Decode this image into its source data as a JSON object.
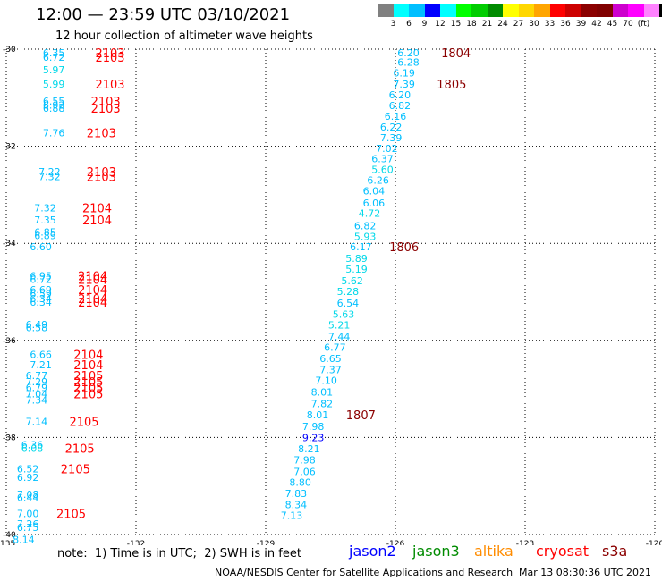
{
  "header": {
    "title": "12:00 — 23:59 UTC 03/10/2021",
    "subtitle": "12 hour collection of altimeter wave heights"
  },
  "colorbar": {
    "colors": [
      "#808080",
      "#00ffff",
      "#00bfff",
      "#0000ff",
      "#00ffff",
      "#00ff00",
      "#00cd00",
      "#008b00",
      "#ffff00",
      "#ffd700",
      "#ffa500",
      "#ff0000",
      "#cd0000",
      "#8b0000",
      "#800000",
      "#cd00cd",
      "#ff00ff",
      "#ff82ff",
      "#000000"
    ],
    "labels": [
      "3",
      "6",
      "9",
      "12",
      "15",
      "18",
      "21",
      "24",
      "27",
      "30",
      "33",
      "36",
      "39",
      "42",
      "45",
      "70",
      "(ft)"
    ]
  },
  "footer": {
    "note": "note:  1) Time is in UTC;  2) SWH is in feet",
    "credit": "NOAA/NESDIS Center for Satellite Applications and Research",
    "timestamp": "Mar 13 08:30:36 UTC 2021",
    "satellites": [
      {
        "name": "jason2",
        "color": "#0000ff"
      },
      {
        "name": "jason3",
        "color": "#008b00"
      },
      {
        "name": "altika",
        "color": "#ff8c00"
      },
      {
        "name": "cryosat",
        "color": "#ff0000"
      },
      {
        "name": "s3a",
        "color": "#8b0000"
      }
    ]
  },
  "chart_data": {
    "type": "scatter",
    "title": "12 hour collection of altimeter wave heights",
    "xlim": [
      -135,
      -120
    ],
    "ylim": [
      -40,
      -30
    ],
    "x_ticks": [
      -135,
      -132,
      -129,
      -126,
      -123,
      -120
    ],
    "y_ticks": [
      -30,
      -32,
      -34,
      -36,
      -38,
      -40
    ],
    "grid": true,
    "colors": {
      "light": "#00bfff",
      "cyan": "#00d8e8",
      "dark": "#0000ff",
      "red": "#ff0000",
      "darkred": "#8b0000"
    },
    "track_a": {
      "label_color": "#ff0000",
      "points": [
        {
          "lon": -133.9,
          "lat": -30.07,
          "swh": "6.35",
          "c": "light"
        },
        {
          "lon": -133.9,
          "lat": -30.17,
          "swh": "6.72",
          "c": "light"
        },
        {
          "lon": -133.9,
          "lat": -30.42,
          "swh": "5.97",
          "c": "cyan"
        },
        {
          "lon": -133.9,
          "lat": -30.72,
          "swh": "5.99",
          "c": "cyan"
        },
        {
          "lon": -133.9,
          "lat": -31.07,
          "swh": "6.55",
          "c": "light"
        },
        {
          "lon": -133.9,
          "lat": -31.15,
          "swh": "6.92",
          "c": "light"
        },
        {
          "lon": -133.9,
          "lat": -31.22,
          "swh": "6.88",
          "c": "light"
        },
        {
          "lon": -133.9,
          "lat": -31.72,
          "swh": "7.76",
          "c": "light"
        },
        {
          "lon": -134.0,
          "lat": -32.52,
          "swh": "7.22",
          "c": "light"
        },
        {
          "lon": -134.0,
          "lat": -32.62,
          "swh": "7.32",
          "c": "light"
        },
        {
          "lon": -134.1,
          "lat": -33.27,
          "swh": "7.32",
          "c": "light"
        },
        {
          "lon": -134.1,
          "lat": -33.52,
          "swh": "7.35",
          "c": "light"
        },
        {
          "lon": -134.1,
          "lat": -33.77,
          "swh": "6.85",
          "c": "light"
        },
        {
          "lon": -134.1,
          "lat": -33.84,
          "swh": "6.89",
          "c": "light"
        },
        {
          "lon": -134.2,
          "lat": -34.07,
          "swh": "6.60",
          "c": "light"
        },
        {
          "lon": -134.2,
          "lat": -34.67,
          "swh": "6.95",
          "c": "light"
        },
        {
          "lon": -134.2,
          "lat": -34.74,
          "swh": "6.72",
          "c": "light"
        },
        {
          "lon": -134.2,
          "lat": -34.95,
          "swh": "6.69",
          "c": "light"
        },
        {
          "lon": -134.2,
          "lat": -35.04,
          "swh": "6.59",
          "c": "light"
        },
        {
          "lon": -134.2,
          "lat": -35.14,
          "swh": "6.34",
          "c": "light"
        },
        {
          "lon": -134.2,
          "lat": -35.21,
          "swh": "6.34",
          "c": "light"
        },
        {
          "lon": -134.3,
          "lat": -35.67,
          "swh": "6.49",
          "c": "light"
        },
        {
          "lon": -134.3,
          "lat": -35.74,
          "swh": "6.58",
          "c": "light"
        },
        {
          "lon": -134.2,
          "lat": -36.29,
          "swh": "6.66",
          "c": "light"
        },
        {
          "lon": -134.2,
          "lat": -36.5,
          "swh": "7.21",
          "c": "light"
        },
        {
          "lon": -134.3,
          "lat": -36.72,
          "swh": "6.77",
          "c": "light"
        },
        {
          "lon": -134.3,
          "lat": -36.85,
          "swh": "7.29",
          "c": "light"
        },
        {
          "lon": -134.3,
          "lat": -36.97,
          "swh": "6.79",
          "c": "light"
        },
        {
          "lon": -134.3,
          "lat": -37.1,
          "swh": "7.04",
          "c": "light"
        },
        {
          "lon": -134.3,
          "lat": -37.23,
          "swh": "7.34",
          "c": "light"
        },
        {
          "lon": -134.3,
          "lat": -37.67,
          "swh": "7.14",
          "c": "light"
        },
        {
          "lon": -134.4,
          "lat": -38.15,
          "swh": "6.36",
          "c": "light"
        },
        {
          "lon": -134.4,
          "lat": -38.22,
          "swh": "6.08",
          "c": "cyan"
        },
        {
          "lon": -134.5,
          "lat": -38.65,
          "swh": "6.52",
          "c": "light"
        },
        {
          "lon": -134.5,
          "lat": -38.82,
          "swh": "6.92",
          "c": "light"
        },
        {
          "lon": -134.5,
          "lat": -39.17,
          "swh": "7.08",
          "c": "light"
        },
        {
          "lon": -134.5,
          "lat": -39.24,
          "swh": "6.44",
          "c": "light"
        },
        {
          "lon": -134.5,
          "lat": -39.57,
          "swh": "7.00",
          "c": "light"
        },
        {
          "lon": -134.5,
          "lat": -39.78,
          "swh": "7.26",
          "c": "light"
        },
        {
          "lon": -134.5,
          "lat": -39.85,
          "swh": "6.75",
          "c": "light"
        },
        {
          "lon": -134.6,
          "lat": -40.1,
          "swh": "8.14",
          "c": "light"
        }
      ],
      "time_labels": [
        {
          "lon": -132.6,
          "lat": -30.07,
          "t": "2103"
        },
        {
          "lon": -132.6,
          "lat": -30.17,
          "t": "2103"
        },
        {
          "lon": -132.6,
          "lat": -30.72,
          "t": "2103"
        },
        {
          "lon": -132.7,
          "lat": -31.07,
          "t": "2103"
        },
        {
          "lon": -132.7,
          "lat": -31.22,
          "t": "2103"
        },
        {
          "lon": -132.8,
          "lat": -31.72,
          "t": "2103"
        },
        {
          "lon": -132.8,
          "lat": -32.52,
          "t": "2103"
        },
        {
          "lon": -132.8,
          "lat": -32.62,
          "t": "2103"
        },
        {
          "lon": -132.9,
          "lat": -33.27,
          "t": "2104"
        },
        {
          "lon": -132.9,
          "lat": -33.52,
          "t": "2104"
        },
        {
          "lon": -133.0,
          "lat": -34.67,
          "t": "2104"
        },
        {
          "lon": -133.0,
          "lat": -34.74,
          "t": "2104"
        },
        {
          "lon": -133.0,
          "lat": -34.95,
          "t": "2104"
        },
        {
          "lon": -133.0,
          "lat": -35.14,
          "t": "2104"
        },
        {
          "lon": -133.0,
          "lat": -35.21,
          "t": "2104"
        },
        {
          "lon": -133.1,
          "lat": -36.29,
          "t": "2104"
        },
        {
          "lon": -133.1,
          "lat": -36.5,
          "t": "2104"
        },
        {
          "lon": -133.1,
          "lat": -36.72,
          "t": "2105"
        },
        {
          "lon": -133.1,
          "lat": -36.85,
          "t": "2105"
        },
        {
          "lon": -133.1,
          "lat": -36.97,
          "t": "2105"
        },
        {
          "lon": -133.1,
          "lat": -37.1,
          "t": "2105"
        },
        {
          "lon": -133.2,
          "lat": -37.67,
          "t": "2105"
        },
        {
          "lon": -133.3,
          "lat": -38.22,
          "t": "2105"
        },
        {
          "lon": -133.4,
          "lat": -38.65,
          "t": "2105"
        },
        {
          "lon": -133.5,
          "lat": -39.57,
          "t": "2105"
        }
      ]
    },
    "track_b": {
      "label_color": "#8b0000",
      "points": [
        {
          "lon": -125.7,
          "lat": -30.07,
          "swh": "6.20",
          "c": "light"
        },
        {
          "lon": -125.7,
          "lat": -30.27,
          "swh": "6.28",
          "c": "light"
        },
        {
          "lon": -125.8,
          "lat": -30.49,
          "swh": "6.19",
          "c": "light"
        },
        {
          "lon": -125.8,
          "lat": -30.72,
          "swh": "7.39",
          "c": "light"
        },
        {
          "lon": -125.9,
          "lat": -30.94,
          "swh": "6.20",
          "c": "light"
        },
        {
          "lon": -125.9,
          "lat": -31.16,
          "swh": "6.82",
          "c": "light"
        },
        {
          "lon": -126.0,
          "lat": -31.38,
          "swh": "6.16",
          "c": "light"
        },
        {
          "lon": -126.1,
          "lat": -31.6,
          "swh": "6.22",
          "c": "light"
        },
        {
          "lon": -126.1,
          "lat": -31.82,
          "swh": "7.39",
          "c": "light"
        },
        {
          "lon": -126.2,
          "lat": -32.04,
          "swh": "7.02",
          "c": "light"
        },
        {
          "lon": -126.3,
          "lat": -32.26,
          "swh": "6.37",
          "c": "light"
        },
        {
          "lon": -126.3,
          "lat": -32.48,
          "swh": "5.60",
          "c": "cyan"
        },
        {
          "lon": -126.4,
          "lat": -32.7,
          "swh": "6.26",
          "c": "light"
        },
        {
          "lon": -126.5,
          "lat": -32.92,
          "swh": "6.04",
          "c": "light"
        },
        {
          "lon": -126.5,
          "lat": -33.17,
          "swh": "6.06",
          "c": "light"
        },
        {
          "lon": -126.6,
          "lat": -33.38,
          "swh": "4.72",
          "c": "cyan"
        },
        {
          "lon": -126.7,
          "lat": -33.64,
          "swh": "6.82",
          "c": "light"
        },
        {
          "lon": -126.7,
          "lat": -33.86,
          "swh": "5.93",
          "c": "cyan"
        },
        {
          "lon": -126.8,
          "lat": -34.07,
          "swh": "6.17",
          "c": "light"
        },
        {
          "lon": -126.9,
          "lat": -34.31,
          "swh": "5.89",
          "c": "cyan"
        },
        {
          "lon": -126.9,
          "lat": -34.53,
          "swh": "5.19",
          "c": "cyan"
        },
        {
          "lon": -127.0,
          "lat": -34.77,
          "swh": "5.62",
          "c": "cyan"
        },
        {
          "lon": -127.1,
          "lat": -34.99,
          "swh": "5.28",
          "c": "cyan"
        },
        {
          "lon": -127.1,
          "lat": -35.23,
          "swh": "6.54",
          "c": "light"
        },
        {
          "lon": -127.2,
          "lat": -35.46,
          "swh": "5.63",
          "c": "cyan"
        },
        {
          "lon": -127.3,
          "lat": -35.68,
          "swh": "5.21",
          "c": "cyan"
        },
        {
          "lon": -127.3,
          "lat": -35.92,
          "swh": "7.44",
          "c": "light"
        },
        {
          "lon": -127.4,
          "lat": -36.14,
          "swh": "6.77",
          "c": "light"
        },
        {
          "lon": -127.5,
          "lat": -36.37,
          "swh": "6.65",
          "c": "light"
        },
        {
          "lon": -127.5,
          "lat": -36.6,
          "swh": "7.37",
          "c": "light"
        },
        {
          "lon": -127.6,
          "lat": -36.82,
          "swh": "7.10",
          "c": "light"
        },
        {
          "lon": -127.7,
          "lat": -37.06,
          "swh": "8.01",
          "c": "light"
        },
        {
          "lon": -127.7,
          "lat": -37.3,
          "swh": "7.82",
          "c": "light"
        },
        {
          "lon": -127.8,
          "lat": -37.53,
          "swh": "8.01",
          "c": "light"
        },
        {
          "lon": -127.9,
          "lat": -37.77,
          "swh": "7.98",
          "c": "light"
        },
        {
          "lon": -127.9,
          "lat": -38.0,
          "swh": "9.23",
          "c": "dark"
        },
        {
          "lon": -128.0,
          "lat": -38.23,
          "swh": "8.21",
          "c": "light"
        },
        {
          "lon": -128.1,
          "lat": -38.46,
          "swh": "7.98",
          "c": "light"
        },
        {
          "lon": -128.1,
          "lat": -38.7,
          "swh": "7.06",
          "c": "light"
        },
        {
          "lon": -128.2,
          "lat": -38.92,
          "swh": "8.80",
          "c": "light"
        },
        {
          "lon": -128.3,
          "lat": -39.15,
          "swh": "7.83",
          "c": "light"
        },
        {
          "lon": -128.3,
          "lat": -39.38,
          "swh": "8.34",
          "c": "light"
        },
        {
          "lon": -128.4,
          "lat": -39.6,
          "swh": "7.13",
          "c": "light"
        }
      ],
      "time_labels": [
        {
          "lon": -124.6,
          "lat": -30.07,
          "t": "1804"
        },
        {
          "lon": -124.7,
          "lat": -30.72,
          "t": "1805"
        },
        {
          "lon": -125.8,
          "lat": -34.07,
          "t": "1806"
        },
        {
          "lon": -126.8,
          "lat": -37.53,
          "t": "1807"
        }
      ]
    }
  }
}
